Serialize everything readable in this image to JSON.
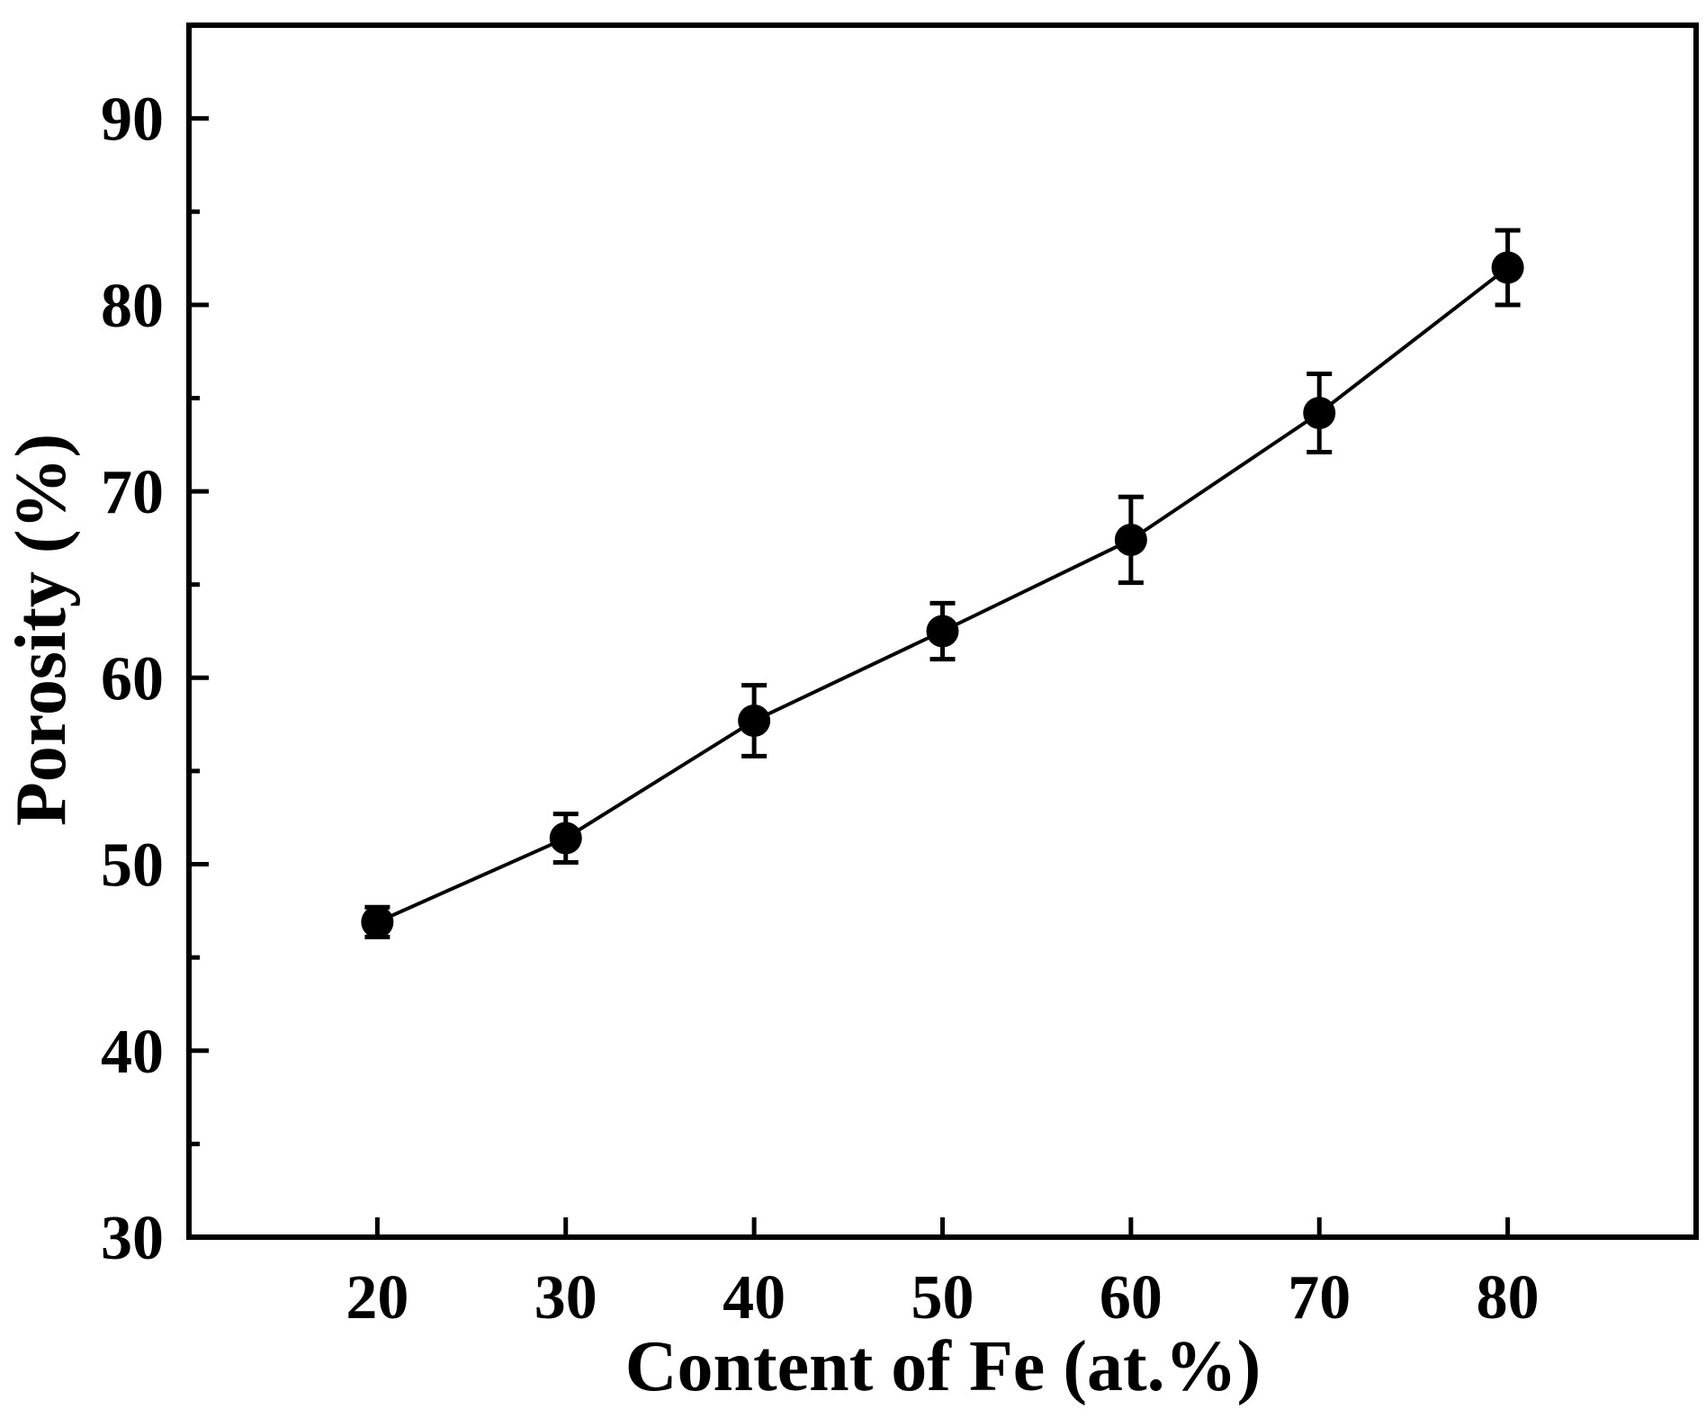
{
  "chart_data": {
    "type": "line",
    "title": "",
    "xlabel": "Content of Fe (at.%)",
    "ylabel": "Porosity (%)",
    "xlim": [
      10,
      90
    ],
    "ylim": [
      30,
      95
    ],
    "x_ticks": [
      20,
      30,
      40,
      50,
      60,
      70,
      80
    ],
    "y_ticks": [
      30,
      40,
      50,
      60,
      70,
      80,
      90
    ],
    "y_minor_ticks": [
      35,
      45,
      55,
      65,
      75,
      85
    ],
    "grid": false,
    "legend": "none",
    "marker": "filled-circle",
    "line_color": "#000000",
    "series": [
      {
        "x": [
          20,
          30,
          40,
          50,
          60,
          70,
          80
        ],
        "y": [
          46.9,
          51.4,
          57.7,
          62.5,
          67.4,
          74.2,
          82.0
        ],
        "error": [
          0.8,
          1.3,
          1.9,
          1.5,
          2.3,
          2.1,
          2.0
        ]
      }
    ]
  }
}
